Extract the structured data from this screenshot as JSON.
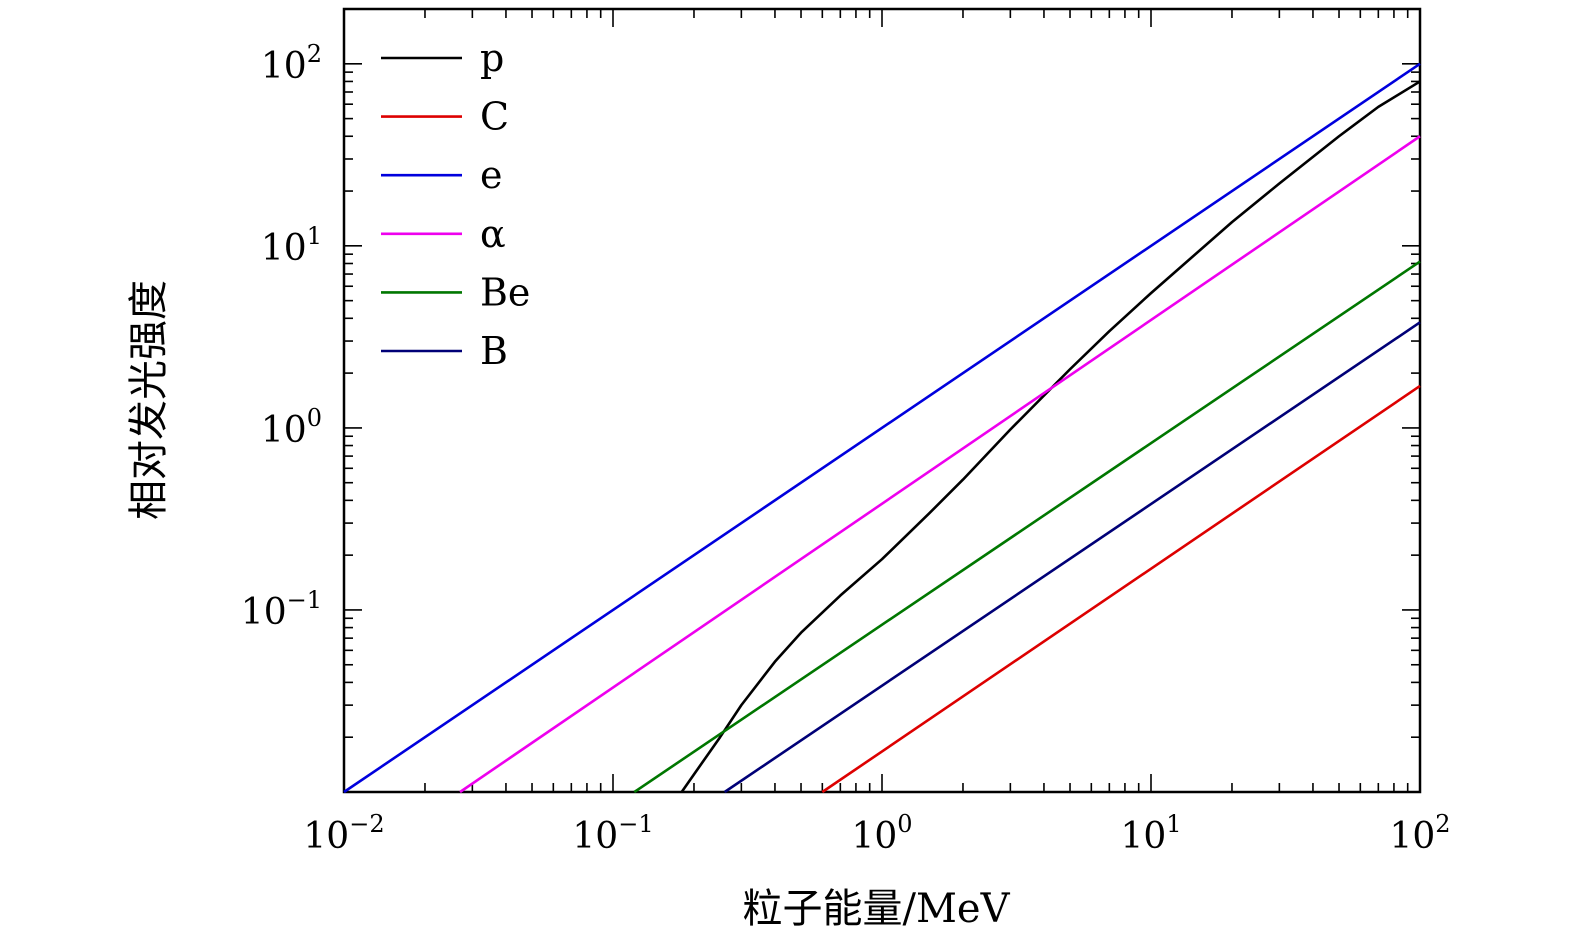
{
  "chart_data": {
    "type": "line",
    "xscale": "log",
    "yscale": "log",
    "xlim": [
      0.01,
      100
    ],
    "ylim": [
      0.01,
      200
    ],
    "xlabel": "粒子能量/MeV",
    "ylabel": "相对发光强度",
    "x_ticks": [
      {
        "base": "10",
        "exp": "−2"
      },
      {
        "base": "10",
        "exp": "−1"
      },
      {
        "base": "10",
        "exp": "0"
      },
      {
        "base": "10",
        "exp": "1"
      },
      {
        "base": "10",
        "exp": "2"
      }
    ],
    "y_ticks": [
      {
        "base": "10",
        "exp": "−1"
      },
      {
        "base": "10",
        "exp": "0"
      },
      {
        "base": "10",
        "exp": "1"
      },
      {
        "base": "10",
        "exp": "2"
      }
    ],
    "legend": "top-left",
    "series": [
      {
        "name": "p",
        "color": "#000000",
        "x": [
          0.18,
          0.2,
          0.25,
          0.3,
          0.4,
          0.5,
          0.7,
          1,
          1.5,
          2,
          3,
          5,
          7,
          10,
          20,
          30,
          50,
          70,
          100
        ],
        "y": [
          0.01,
          0.0125,
          0.02,
          0.03,
          0.052,
          0.075,
          0.12,
          0.19,
          0.34,
          0.52,
          0.98,
          2.1,
          3.4,
          5.5,
          13.5,
          22,
          40,
          58,
          80
        ]
      },
      {
        "name": "C",
        "color": "#dd0000",
        "x": [
          0.6,
          100
        ],
        "y": [
          0.01,
          1.7
        ]
      },
      {
        "name": "e",
        "color": "#0000dd",
        "x": [
          0.01,
          100
        ],
        "y": [
          0.01,
          100
        ]
      },
      {
        "name": "α",
        "color": "#ee00ee",
        "x": [
          0.027,
          100
        ],
        "y": [
          0.01,
          40
        ]
      },
      {
        "name": "Be",
        "color": "#007700",
        "x": [
          0.12,
          100
        ],
        "y": [
          0.01,
          8.2
        ]
      },
      {
        "name": "B",
        "color": "#000077",
        "x": [
          0.26,
          100
        ],
        "y": [
          0.01,
          3.8
        ]
      }
    ]
  }
}
